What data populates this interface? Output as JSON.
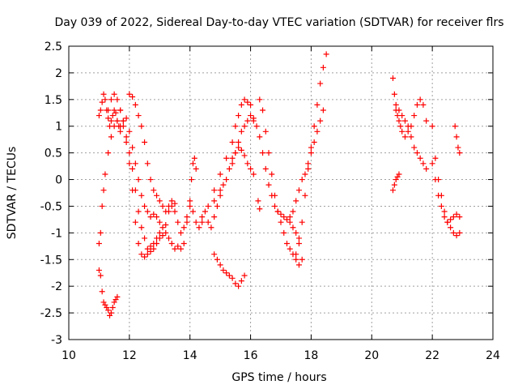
{
  "chart_data": {
    "type": "scatter",
    "title": "Day 039 of 2022, Sidereal Day-to-day VTEC variation (SDTVAR) for receiver flrs",
    "xlabel": "GPS time / hours",
    "ylabel": "SDTVAR / TECUs",
    "xlim": [
      10,
      24
    ],
    "ylim": [
      -3,
      2.5
    ],
    "xticks": [
      10,
      12,
      14,
      16,
      18,
      20,
      22,
      24
    ],
    "yticks": [
      -3,
      -2.5,
      -2,
      -1.5,
      -1,
      -0.5,
      0,
      0.5,
      1,
      1.5,
      2,
      2.5
    ],
    "grid": true,
    "marker": "+",
    "color": "#ff0000",
    "series": [
      {
        "name": "arc-a-left",
        "x": [
          11.0,
          11.05,
          11.1,
          11.15,
          11.2,
          11.25,
          11.3,
          11.35,
          11.4,
          11.45,
          11.5,
          11.55,
          11.6,
          11.65,
          11.7
        ],
        "y": [
          1.2,
          1.3,
          1.45,
          1.6,
          1.5,
          1.3,
          1.15,
          1.0,
          1.1,
          1.2,
          1.3,
          1.25,
          1.1,
          1.0,
          0.9
        ]
      },
      {
        "name": "arc-a-down",
        "x": [
          11.7,
          11.8,
          11.9,
          12.0,
          12.1,
          12.2,
          12.3,
          12.4,
          12.5,
          12.6,
          12.7,
          12.8,
          12.9,
          13.0,
          13.1,
          13.2
        ],
        "y": [
          1.0,
          1.1,
          1.15,
          0.9,
          0.6,
          0.3,
          0.0,
          -0.3,
          -0.5,
          -0.6,
          -0.7,
          -0.65,
          -0.7,
          -0.8,
          -0.9,
          -0.85
        ]
      },
      {
        "name": "arc-b",
        "x": [
          11.0,
          11.05,
          11.1,
          11.15,
          11.2,
          11.3,
          11.4,
          11.5,
          11.6,
          11.7,
          11.8,
          11.9,
          12.0,
          12.1,
          12.2,
          12.3,
          12.4,
          12.5,
          12.6,
          12.7,
          12.8,
          12.9,
          13.0
        ],
        "y": [
          -1.2,
          -1.0,
          -0.5,
          -0.2,
          0.1,
          0.5,
          0.8,
          1.0,
          1.1,
          1.3,
          1.1,
          0.8,
          0.5,
          0.2,
          -0.2,
          -0.6,
          -0.9,
          -1.1,
          -1.3,
          -1.25,
          -1.2,
          -1.1,
          -1.0
        ]
      },
      {
        "name": "arc-c",
        "x": [
          11.3,
          11.4,
          11.5,
          11.6,
          11.7,
          11.8,
          11.9,
          12.0,
          12.1,
          12.2,
          12.3,
          12.4,
          12.5,
          12.6,
          12.7,
          12.8,
          12.9,
          13.0,
          13.1,
          13.2,
          13.3,
          13.4,
          13.5,
          13.6
        ],
        "y": [
          1.3,
          1.5,
          1.6,
          1.5,
          1.3,
          1.0,
          0.7,
          0.3,
          -0.2,
          -0.8,
          -1.2,
          -1.4,
          -1.45,
          -1.4,
          -1.35,
          -1.3,
          -1.2,
          -1.1,
          -1.05,
          -1.0,
          -1.1,
          -1.2,
          -1.3,
          -1.25
        ]
      },
      {
        "name": "arc-d-high",
        "x": [
          12.0,
          12.1,
          12.2,
          12.3,
          12.4,
          12.5,
          12.6,
          12.7,
          12.8,
          12.9,
          13.0,
          13.1,
          13.2,
          13.3,
          13.4,
          13.5
        ],
        "y": [
          1.6,
          1.55,
          1.4,
          1.2,
          1.0,
          0.7,
          0.3,
          0.0,
          -0.2,
          -0.3,
          -0.4,
          -0.5,
          -0.6,
          -0.5,
          -0.4,
          -0.45
        ]
      },
      {
        "name": "arc-e-low",
        "x": [
          11.0,
          11.05,
          11.1,
          11.15,
          11.2,
          11.25,
          11.3,
          11.35,
          11.4,
          11.45,
          11.5,
          11.55,
          11.6
        ],
        "y": [
          -1.7,
          -1.8,
          -2.1,
          -2.3,
          -2.35,
          -2.4,
          -2.45,
          -2.55,
          -2.5,
          -2.4,
          -2.3,
          -2.25,
          -2.2
        ]
      },
      {
        "name": "arc-f-mid",
        "x": [
          13.3,
          13.4,
          13.5,
          13.6,
          13.7,
          13.8,
          13.9,
          14.0,
          14.1,
          14.2,
          14.3,
          14.4,
          14.5,
          14.6,
          14.7,
          14.8,
          14.9,
          15.0,
          15.1
        ],
        "y": [
          -0.6,
          -0.5,
          -0.6,
          -0.8,
          -1.0,
          -0.9,
          -0.7,
          -0.5,
          -0.6,
          -0.8,
          -0.9,
          -0.7,
          -0.6,
          -0.8,
          -0.9,
          -0.7,
          -0.5,
          -0.3,
          -0.1
        ]
      },
      {
        "name": "arc-g",
        "x": [
          13.7,
          13.8,
          13.9,
          14.0,
          14.05,
          14.1,
          14.15,
          14.2
        ],
        "y": [
          -1.3,
          -1.2,
          -0.8,
          -0.4,
          0.0,
          0.3,
          0.4,
          0.2
        ]
      },
      {
        "name": "arc-h-bottom",
        "x": [
          14.8,
          14.9,
          15.0,
          15.1,
          15.2,
          15.3,
          15.4,
          15.5,
          15.6,
          15.7,
          15.8
        ],
        "y": [
          -1.4,
          -1.5,
          -1.6,
          -1.7,
          -1.75,
          -1.8,
          -1.85,
          -1.95,
          -2.0,
          -1.9,
          -1.8
        ]
      },
      {
        "name": "arc-i-rise",
        "x": [
          14.4,
          14.6,
          14.8,
          15.0,
          15.2,
          15.4,
          15.5,
          15.6,
          15.7,
          15.8,
          15.9,
          16.0,
          16.1
        ],
        "y": [
          -0.8,
          -0.5,
          -0.2,
          0.1,
          0.4,
          0.7,
          1.0,
          1.2,
          1.4,
          1.5,
          1.45,
          1.4,
          1.1
        ]
      },
      {
        "name": "arc-j",
        "x": [
          14.8,
          15.0,
          15.2,
          15.4,
          15.5,
          15.6,
          15.7,
          15.8,
          15.9,
          16.0,
          16.1
        ],
        "y": [
          -0.4,
          -0.2,
          0.0,
          0.3,
          0.5,
          0.7,
          0.9,
          1.0,
          1.1,
          1.2,
          1.15
        ]
      },
      {
        "name": "arc-k",
        "x": [
          15.3,
          15.4,
          15.5,
          15.6,
          15.7,
          15.8,
          15.9,
          16.0,
          16.1
        ],
        "y": [
          0.2,
          0.4,
          0.5,
          0.6,
          0.55,
          0.45,
          0.3,
          0.2,
          0.1
        ]
      },
      {
        "name": "arc-l-dip",
        "x": [
          16.3,
          16.4,
          16.5,
          16.6,
          16.7,
          16.8,
          16.9,
          17.0,
          17.1,
          17.2,
          17.3,
          17.4,
          17.5,
          17.6,
          17.7
        ],
        "y": [
          1.5,
          1.3,
          0.9,
          0.5,
          0.1,
          -0.3,
          -0.6,
          -0.8,
          -1.0,
          -1.2,
          -1.3,
          -1.4,
          -1.5,
          -1.6,
          -1.5
        ]
      },
      {
        "name": "arc-m-dip",
        "x": [
          16.2,
          16.3,
          16.4,
          16.5,
          16.6,
          16.7,
          16.8,
          16.9,
          17.0,
          17.1,
          17.2,
          17.3,
          17.4,
          17.5,
          17.6
        ],
        "y": [
          1.0,
          0.8,
          0.5,
          0.2,
          -0.1,
          -0.3,
          -0.5,
          -0.6,
          -0.65,
          -0.7,
          -0.75,
          -0.8,
          -0.9,
          -1.0,
          -1.1
        ]
      },
      {
        "name": "arc-n-spike",
        "x": [
          16.25,
          16.3
        ],
        "y": [
          -0.4,
          -0.55
        ]
      },
      {
        "name": "arc-o-rise",
        "x": [
          17.5,
          17.6,
          17.7,
          17.8,
          17.9,
          18.0,
          18.1,
          18.2,
          18.3,
          18.4,
          18.5
        ],
        "y": [
          -1.4,
          -1.2,
          -0.8,
          -0.3,
          0.2,
          0.6,
          1.0,
          1.4,
          1.8,
          2.1,
          2.35
        ]
      },
      {
        "name": "arc-p-rise",
        "x": [
          17.3,
          17.4,
          17.5,
          17.6,
          17.7,
          17.8,
          17.9,
          18.0,
          18.1,
          18.2,
          18.3,
          18.4
        ],
        "y": [
          -0.7,
          -0.6,
          -0.4,
          -0.2,
          0.0,
          0.1,
          0.3,
          0.5,
          0.7,
          0.9,
          1.1,
          1.3
        ]
      },
      {
        "name": "arc-q",
        "x": [
          20.7,
          20.75,
          20.8,
          20.85,
          20.9,
          20.95,
          21.0,
          21.1,
          21.2,
          21.3,
          21.4,
          21.5,
          21.6,
          21.7,
          21.8
        ],
        "y": [
          1.9,
          1.6,
          1.3,
          1.2,
          1.1,
          1.0,
          0.9,
          0.8,
          0.9,
          1.0,
          1.2,
          1.4,
          1.5,
          1.4,
          1.1
        ]
      },
      {
        "name": "arc-r",
        "x": [
          20.8,
          20.9,
          21.0,
          21.1,
          21.2,
          21.3,
          21.4,
          21.5,
          21.6,
          21.7,
          21.8
        ],
        "y": [
          1.4,
          1.3,
          1.2,
          1.1,
          1.0,
          0.8,
          0.6,
          0.5,
          0.4,
          0.3,
          0.2
        ]
      },
      {
        "name": "arc-s",
        "x": [
          20.7,
          20.75,
          20.8,
          20.85,
          20.9
        ],
        "y": [
          -0.2,
          -0.1,
          0.0,
          0.05,
          0.1
        ]
      },
      {
        "name": "arc-t",
        "x": [
          22.0,
          22.1,
          22.2,
          22.3,
          22.4,
          22.5,
          22.6,
          22.7,
          22.8,
          22.9
        ],
        "y": [
          1.0,
          0.4,
          0.0,
          -0.3,
          -0.6,
          -0.8,
          -0.9,
          -1.0,
          -1.05,
          -1.0
        ]
      },
      {
        "name": "arc-u",
        "x": [
          22.0,
          22.1,
          22.2,
          22.3,
          22.4,
          22.5,
          22.6,
          22.7,
          22.8,
          22.9
        ],
        "y": [
          0.3,
          0.0,
          -0.3,
          -0.5,
          -0.7,
          -0.8,
          -0.75,
          -0.7,
          -0.65,
          -0.7
        ]
      },
      {
        "name": "arc-v",
        "x": [
          22.75,
          22.8,
          22.85,
          22.9
        ],
        "y": [
          1.0,
          0.8,
          0.6,
          0.5
        ]
      }
    ]
  }
}
